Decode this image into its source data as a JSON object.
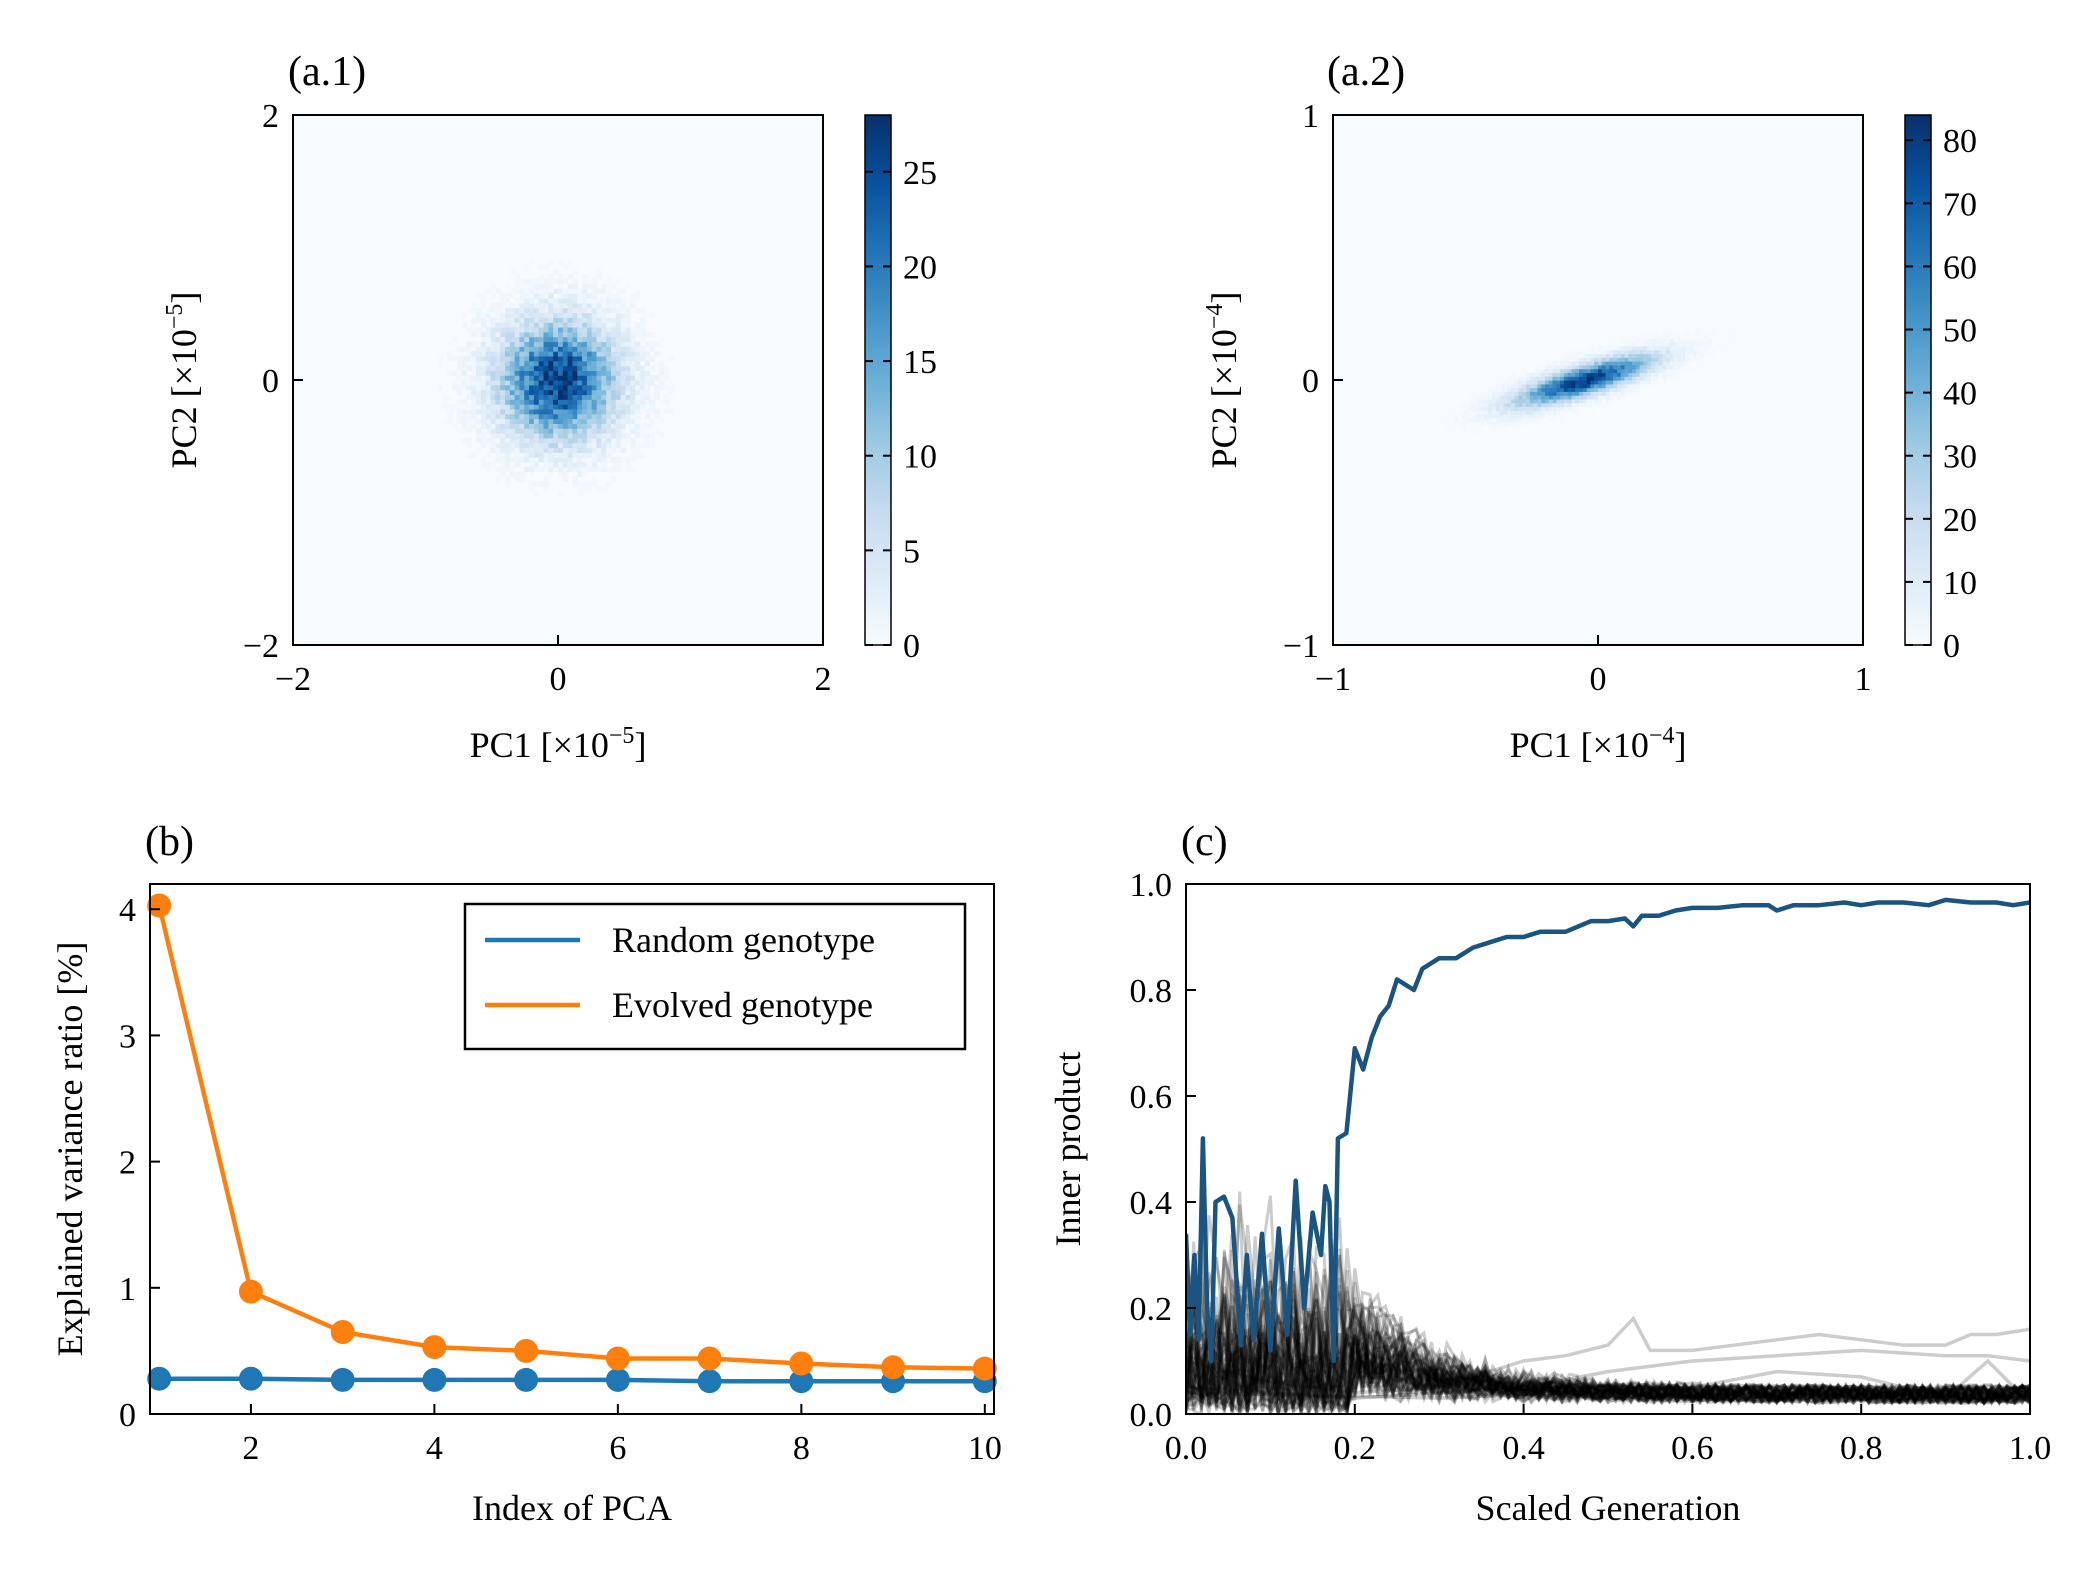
{
  "chart_data": [
    {
      "id": "a1",
      "panel_label": "(a.1)",
      "type": "heatmap",
      "xlabel_prefix": "PC1 [×10",
      "xlabel_exp": "−5",
      "xlabel_suffix": "]",
      "ylabel_prefix": "PC2 [×10",
      "ylabel_exp": "−5",
      "ylabel_suffix": "]",
      "xlim": [
        -2,
        2
      ],
      "ylim": [
        -2,
        2
      ],
      "xticks": [
        -2,
        0,
        2
      ],
      "yticks": [
        -2,
        0,
        2
      ],
      "xtick_labels": [
        "−2",
        "0",
        "2"
      ],
      "ytick_labels": [
        "−2",
        "0",
        "2"
      ],
      "distribution": {
        "center": [
          0,
          0
        ],
        "sigma_x": 0.28,
        "sigma_y": 0.28,
        "angle_deg": 0,
        "peak_count": 27
      },
      "colorbar": {
        "min": 0,
        "max": 28,
        "ticks": [
          0,
          5,
          10,
          15,
          20,
          25
        ],
        "tick_labels": [
          "0",
          "5",
          "10",
          "15",
          "20",
          "25"
        ],
        "colormap": "Blues"
      }
    },
    {
      "id": "a2",
      "panel_label": "(a.2)",
      "type": "heatmap",
      "xlabel_prefix": "PC1 [×10",
      "xlabel_exp": "−4",
      "xlabel_suffix": "]",
      "ylabel_prefix": "PC2 [×10",
      "ylabel_exp": "−4",
      "ylabel_suffix": "]",
      "xlim": [
        -1,
        1
      ],
      "ylim": [
        -1,
        1
      ],
      "xticks": [
        -1,
        0,
        1
      ],
      "yticks": [
        -1,
        0,
        1
      ],
      "xtick_labels": [
        "−1",
        "0",
        "1"
      ],
      "ytick_labels": [
        "−1",
        "0",
        "1"
      ],
      "distribution": {
        "center": [
          -0.05,
          0.0
        ],
        "sigma_x": 0.17,
        "sigma_y": 0.035,
        "angle_deg": 17,
        "peak_count": 82
      },
      "colorbar": {
        "min": 0,
        "max": 84,
        "ticks": [
          0,
          10,
          20,
          30,
          40,
          50,
          60,
          70,
          80
        ],
        "tick_labels": [
          "0",
          "10",
          "20",
          "30",
          "40",
          "50",
          "60",
          "70",
          "80"
        ],
        "colormap": "Blues"
      }
    },
    {
      "id": "b",
      "panel_label": "(b)",
      "type": "line",
      "xlabel": "Index of PCA",
      "ylabel": "Explained variance ratio [%]",
      "xlim": [
        0.9,
        10.1
      ],
      "ylim": [
        0,
        4.2
      ],
      "xticks": [
        2,
        4,
        6,
        8,
        10
      ],
      "yticks": [
        0,
        1,
        2,
        3,
        4
      ],
      "x": [
        1,
        2,
        3,
        4,
        5,
        6,
        7,
        8,
        9,
        10
      ],
      "series": [
        {
          "name": "Random genotype",
          "color": "#1f77b4",
          "values": [
            0.28,
            0.28,
            0.27,
            0.27,
            0.27,
            0.27,
            0.26,
            0.26,
            0.26,
            0.26
          ]
        },
        {
          "name": "Evolved genotype",
          "color": "#ff7f0e",
          "values": [
            4.03,
            0.97,
            0.65,
            0.53,
            0.5,
            0.44,
            0.44,
            0.4,
            0.37,
            0.36
          ]
        }
      ],
      "legend_position": "top-right"
    },
    {
      "id": "c",
      "panel_label": "(c)",
      "type": "line",
      "xlabel": "Scaled Generation",
      "ylabel": "Inner product",
      "xlim": [
        0,
        1
      ],
      "ylim": [
        0,
        1
      ],
      "xticks": [
        0,
        0.2,
        0.4,
        0.6,
        0.8,
        1.0
      ],
      "yticks": [
        0,
        0.2,
        0.4,
        0.6,
        0.8,
        1.0
      ],
      "xtick_labels": [
        "0.0",
        "0.2",
        "0.4",
        "0.6",
        "0.8",
        "1.0"
      ],
      "ytick_labels": [
        "0.0",
        "0.2",
        "0.4",
        "0.6",
        "0.8",
        "1.0"
      ],
      "main_series": {
        "color": "#1a5480",
        "points": [
          [
            0.0,
            0.34
          ],
          [
            0.005,
            0.15
          ],
          [
            0.01,
            0.3
          ],
          [
            0.015,
            0.14
          ],
          [
            0.02,
            0.52
          ],
          [
            0.025,
            0.2
          ],
          [
            0.03,
            0.1
          ],
          [
            0.035,
            0.4
          ],
          [
            0.045,
            0.41
          ],
          [
            0.055,
            0.37
          ],
          [
            0.065,
            0.13
          ],
          [
            0.072,
            0.3
          ],
          [
            0.08,
            0.14
          ],
          [
            0.09,
            0.34
          ],
          [
            0.1,
            0.12
          ],
          [
            0.11,
            0.35
          ],
          [
            0.12,
            0.15
          ],
          [
            0.13,
            0.44
          ],
          [
            0.14,
            0.2
          ],
          [
            0.15,
            0.38
          ],
          [
            0.16,
            0.3
          ],
          [
            0.165,
            0.43
          ],
          [
            0.17,
            0.4
          ],
          [
            0.175,
            0.1
          ],
          [
            0.18,
            0.52
          ],
          [
            0.19,
            0.53
          ],
          [
            0.2,
            0.69
          ],
          [
            0.21,
            0.65
          ],
          [
            0.22,
            0.71
          ],
          [
            0.23,
            0.75
          ],
          [
            0.24,
            0.77
          ],
          [
            0.25,
            0.82
          ],
          [
            0.26,
            0.81
          ],
          [
            0.27,
            0.8
          ],
          [
            0.28,
            0.84
          ],
          [
            0.3,
            0.86
          ],
          [
            0.32,
            0.86
          ],
          [
            0.34,
            0.88
          ],
          [
            0.36,
            0.89
          ],
          [
            0.38,
            0.9
          ],
          [
            0.4,
            0.9
          ],
          [
            0.42,
            0.91
          ],
          [
            0.45,
            0.91
          ],
          [
            0.48,
            0.93
          ],
          [
            0.5,
            0.93
          ],
          [
            0.52,
            0.935
          ],
          [
            0.53,
            0.92
          ],
          [
            0.54,
            0.94
          ],
          [
            0.56,
            0.94
          ],
          [
            0.58,
            0.95
          ],
          [
            0.6,
            0.955
          ],
          [
            0.63,
            0.955
          ],
          [
            0.66,
            0.96
          ],
          [
            0.69,
            0.96
          ],
          [
            0.7,
            0.95
          ],
          [
            0.72,
            0.96
          ],
          [
            0.75,
            0.96
          ],
          [
            0.78,
            0.965
          ],
          [
            0.8,
            0.96
          ],
          [
            0.82,
            0.965
          ],
          [
            0.85,
            0.965
          ],
          [
            0.88,
            0.96
          ],
          [
            0.9,
            0.97
          ],
          [
            0.93,
            0.965
          ],
          [
            0.96,
            0.965
          ],
          [
            0.98,
            0.96
          ],
          [
            1.0,
            0.965
          ]
        ]
      },
      "gray_series": [
        {
          "points": [
            [
              0.0,
              0.1
            ],
            [
              0.1,
              0.06
            ],
            [
              0.2,
              0.04
            ],
            [
              0.3,
              0.05
            ],
            [
              0.4,
              0.1
            ],
            [
              0.45,
              0.11
            ],
            [
              0.5,
              0.13
            ],
            [
              0.53,
              0.18
            ],
            [
              0.55,
              0.12
            ],
            [
              0.6,
              0.12
            ],
            [
              0.7,
              0.14
            ],
            [
              0.75,
              0.15
            ],
            [
              0.8,
              0.14
            ],
            [
              0.85,
              0.13
            ],
            [
              0.9,
              0.13
            ],
            [
              0.93,
              0.15
            ],
            [
              0.96,
              0.15
            ],
            [
              1.0,
              0.16
            ]
          ]
        },
        {
          "points": [
            [
              0.0,
              0.05
            ],
            [
              0.2,
              0.03
            ],
            [
              0.4,
              0.05
            ],
            [
              0.5,
              0.08
            ],
            [
              0.6,
              0.1
            ],
            [
              0.7,
              0.11
            ],
            [
              0.8,
              0.12
            ],
            [
              0.9,
              0.11
            ],
            [
              0.95,
              0.11
            ],
            [
              1.0,
              0.1
            ]
          ]
        },
        {
          "points": [
            [
              0.0,
              0.04
            ],
            [
              0.3,
              0.03
            ],
            [
              0.6,
              0.05
            ],
            [
              0.7,
              0.08
            ],
            [
              0.8,
              0.07
            ],
            [
              0.85,
              0.05
            ],
            [
              0.9,
              0.03
            ],
            [
              0.95,
              0.1
            ],
            [
              1.0,
              0.02
            ]
          ]
        }
      ],
      "noise_band": {
        "count": 60,
        "early_max": 0.48,
        "late_mean": 0.02
      }
    }
  ]
}
